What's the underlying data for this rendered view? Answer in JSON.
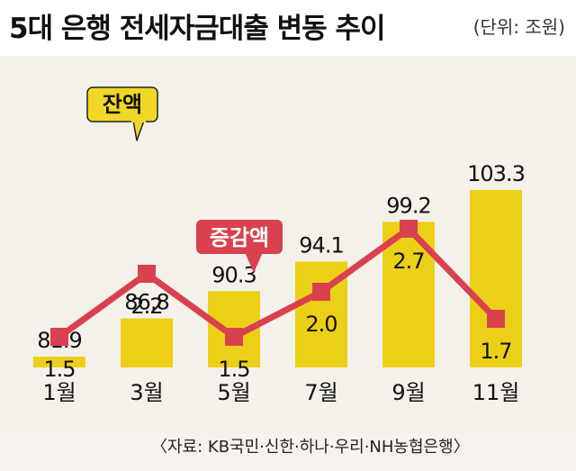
{
  "title": "5대 은행 전세자금대출 변동 추이",
  "unit": "(단위: 조원)",
  "source": "〈자료: KB국민·신한·하나·우리·NH농협은행〉",
  "colors": {
    "bar": "#ecd018",
    "line": "#d9414e",
    "callout_balance": "#f1d827",
    "callout_change": "#d9414e"
  },
  "chart_data": {
    "type": "bar",
    "categories": [
      "1월",
      "3월",
      "5월",
      "7월",
      "9월",
      "11월"
    ],
    "series": [
      {
        "name": "잔액",
        "type": "bar",
        "values": [
          81.9,
          86.8,
          90.3,
          94.1,
          99.2,
          103.3
        ]
      },
      {
        "name": "증감액",
        "type": "line",
        "values": [
          1.5,
          2.2,
          1.5,
          2.0,
          2.7,
          1.7
        ]
      }
    ],
    "bar_labels": [
      "81.9",
      "86.8",
      "90.3",
      "94.1",
      "99.2",
      "103.3"
    ],
    "line_labels": [
      "1.5",
      "2.2",
      "1.5",
      "2.0",
      "2.7",
      "1.7"
    ],
    "legend": {
      "balance": "잔액",
      "change": "증감액"
    },
    "ylim_bar": [
      60,
      105
    ],
    "ylim_line": [
      0.5,
      3.5
    ],
    "grid": false
  }
}
